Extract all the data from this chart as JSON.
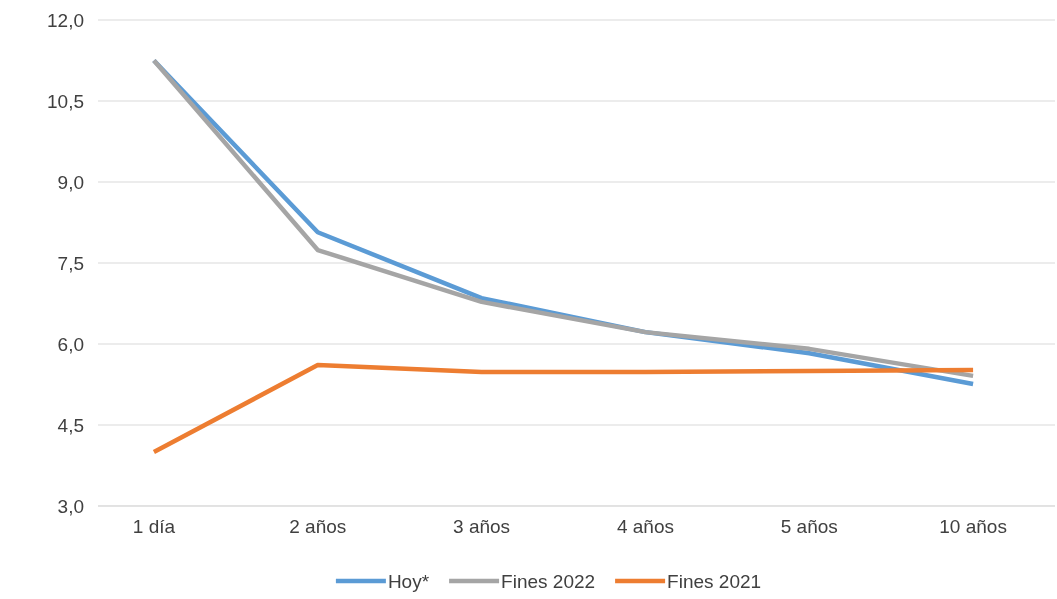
{
  "chart_data": {
    "type": "line",
    "categories": [
      "1 día",
      "2 años",
      "3 años",
      "4 años",
      "5 años",
      "10 años"
    ],
    "series": [
      {
        "name": "Hoy*",
        "color": "#5b9bd5",
        "values": [
          11.25,
          8.07,
          6.85,
          6.22,
          5.83,
          5.26
        ]
      },
      {
        "name": "Fines 2022",
        "color": "#a5a5a5",
        "values": [
          11.25,
          7.74,
          6.78,
          6.22,
          5.91,
          5.41
        ]
      },
      {
        "name": "Fines 2021",
        "color": "#ed7d31",
        "values": [
          4.0,
          5.61,
          5.48,
          5.48,
          5.5,
          5.52
        ]
      }
    ],
    "ylim": [
      3,
      12
    ],
    "yticks": [
      {
        "value": 3,
        "label": "3,0"
      },
      {
        "value": 4.5,
        "label": "4,5"
      },
      {
        "value": 6,
        "label": "6,0"
      },
      {
        "value": 7.5,
        "label": "7,5"
      },
      {
        "value": 9,
        "label": "9,0"
      },
      {
        "value": 10.5,
        "label": "10,5"
      },
      {
        "value": 12,
        "label": "12,0"
      }
    ],
    "grid": "y",
    "legend": "bottom",
    "marker": "none",
    "line_style": "solid"
  }
}
